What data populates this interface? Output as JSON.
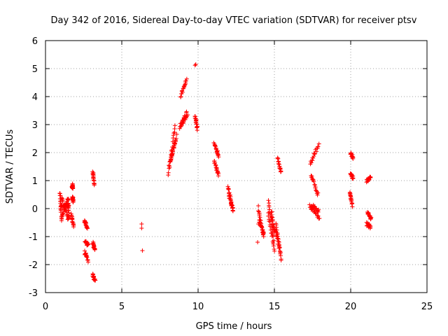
{
  "chart_data": {
    "type": "scatter",
    "title": "Day 342 of 2016, Sidereal Day-to-day VTEC variation (SDTVAR) for receiver ptsv",
    "xlabel": "GPS time / hours",
    "ylabel": "SDTVAR / TECUs",
    "xlim": [
      0,
      25
    ],
    "ylim": [
      -3,
      6
    ],
    "xticks": [
      0,
      5,
      10,
      15,
      20,
      25
    ],
    "yticks": [
      -3,
      -2,
      -1,
      0,
      1,
      2,
      3,
      4,
      5,
      6
    ],
    "grid": true,
    "marker": "+",
    "color": "#ff0000",
    "segments": [
      {
        "x0": 0.95,
        "x1": 1.05,
        "y0": 0.6,
        "y1": -0.4
      },
      {
        "x0": 1.05,
        "x1": 1.5,
        "y0": 0.4,
        "y1": -0.4
      },
      {
        "x0": 1.05,
        "x1": 1.45,
        "y0": -0.3,
        "y1": 0.35
      },
      {
        "x0": 1.0,
        "x1": 1.5,
        "y0": 0.1,
        "y1": 0.1
      },
      {
        "x0": 1.5,
        "x1": 1.52,
        "y0": 0.4,
        "y1": -0.4
      },
      {
        "x0": 1.75,
        "x1": 1.78,
        "y0": 0.85,
        "y1": 0.7
      },
      {
        "x0": 1.78,
        "x1": 1.82,
        "y0": 0.4,
        "y1": 0.25
      },
      {
        "x0": 1.7,
        "x1": 1.85,
        "y0": -0.2,
        "y1": -0.65
      },
      {
        "x0": 2.55,
        "x1": 2.75,
        "y0": -0.45,
        "y1": -0.7
      },
      {
        "x0": 2.6,
        "x1": 2.8,
        "y0": -1.2,
        "y1": -1.3
      },
      {
        "x0": 2.55,
        "x1": 2.8,
        "y0": -1.55,
        "y1": -1.85
      },
      {
        "x0": 3.1,
        "x1": 3.2,
        "y0": 1.3,
        "y1": 0.85
      },
      {
        "x0": 3.1,
        "x1": 3.25,
        "y0": -1.2,
        "y1": -1.5
      },
      {
        "x0": 3.1,
        "x1": 3.25,
        "y0": -2.35,
        "y1": -2.6
      },
      {
        "x0": 8.05,
        "x1": 8.5,
        "y0": 1.2,
        "y1": 3.0
      },
      {
        "x0": 8.1,
        "x1": 8.6,
        "y0": 1.5,
        "y1": 2.6
      },
      {
        "x0": 8.2,
        "x1": 8.5,
        "y0": 1.7,
        "y1": 2.4
      },
      {
        "x0": 8.8,
        "x1": 9.25,
        "y0": 2.9,
        "y1": 3.4
      },
      {
        "x0": 8.85,
        "x1": 9.3,
        "y0": 3.0,
        "y1": 3.3
      },
      {
        "x0": 8.85,
        "x1": 9.25,
        "y0": 4.0,
        "y1": 4.6
      },
      {
        "x0": 9.8,
        "x1": 9.95,
        "y0": 3.3,
        "y1": 2.85
      },
      {
        "x0": 11.05,
        "x1": 11.35,
        "y0": 2.3,
        "y1": 1.9
      },
      {
        "x0": 11.05,
        "x1": 11.35,
        "y0": 1.7,
        "y1": 1.2
      },
      {
        "x0": 11.95,
        "x1": 12.3,
        "y0": 0.8,
        "y1": -0.1
      },
      {
        "x0": 12.0,
        "x1": 12.3,
        "y0": 0.5,
        "y1": -0.05
      },
      {
        "x0": 13.95,
        "x1": 14.3,
        "y0": -0.1,
        "y1": -1.0
      },
      {
        "x0": 14.0,
        "x1": 14.3,
        "y0": -0.4,
        "y1": -0.9
      },
      {
        "x0": 14.6,
        "x1": 14.95,
        "y0": 0.3,
        "y1": -1.1
      },
      {
        "x0": 14.6,
        "x1": 15.0,
        "y0": -0.2,
        "y1": -1.5
      },
      {
        "x0": 14.8,
        "x1": 15.0,
        "y0": -0.1,
        "y1": -0.9
      },
      {
        "x0": 15.1,
        "x1": 15.45,
        "y0": -0.5,
        "y1": -1.85
      },
      {
        "x0": 15.05,
        "x1": 15.4,
        "y0": -0.7,
        "y1": -1.6
      },
      {
        "x0": 15.2,
        "x1": 15.45,
        "y0": 1.8,
        "y1": 1.3
      },
      {
        "x0": 17.35,
        "x1": 17.9,
        "y0": 1.6,
        "y1": 2.3
      },
      {
        "x0": 17.4,
        "x1": 17.85,
        "y0": 1.2,
        "y1": 0.5
      },
      {
        "x0": 17.3,
        "x1": 17.95,
        "y0": 0.1,
        "y1": -0.35
      },
      {
        "x0": 17.45,
        "x1": 17.9,
        "y0": 0.15,
        "y1": -0.1
      },
      {
        "x0": 20.0,
        "x1": 20.15,
        "y0": 2.0,
        "y1": 1.8
      },
      {
        "x0": 20.0,
        "x1": 20.15,
        "y0": 1.2,
        "y1": 1.1
      },
      {
        "x0": 19.95,
        "x1": 20.1,
        "y0": 0.6,
        "y1": 0.1
      },
      {
        "x0": 21.05,
        "x1": 21.3,
        "y0": 1.0,
        "y1": 1.1
      },
      {
        "x0": 21.1,
        "x1": 21.35,
        "y0": -0.15,
        "y1": -0.35
      },
      {
        "x0": 21.05,
        "x1": 21.3,
        "y0": -0.55,
        "y1": -0.65
      }
    ],
    "points": [
      [
        6.3,
        -0.55
      ],
      [
        6.3,
        -0.7
      ],
      [
        6.35,
        -1.5
      ],
      [
        9.8,
        5.12
      ],
      [
        9.85,
        5.15
      ],
      [
        13.95,
        0.1
      ],
      [
        13.95,
        -0.55
      ],
      [
        13.9,
        -1.2
      ]
    ]
  }
}
